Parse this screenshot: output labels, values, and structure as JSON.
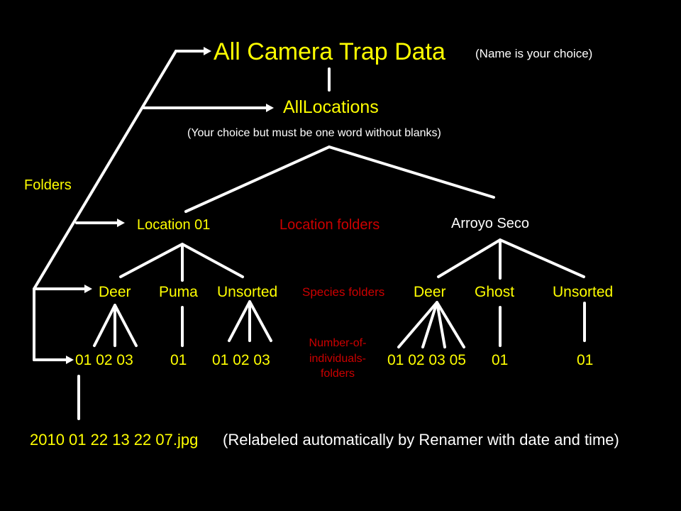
{
  "colors": {
    "background": "#000000",
    "folder_text": "#ffff00",
    "note_text": "#ffffff",
    "category_text": "#cc0000",
    "lines": "#ffffff"
  },
  "root": {
    "title": "All Camera Trap Data",
    "note": "(Name is your choice)"
  },
  "all_locations": {
    "name": "AllLocations",
    "note": "(Your choice but must be one word without blanks)"
  },
  "folders_label": "Folders",
  "location_folders_label": "Location folders",
  "species_folders_label": "Species folders",
  "number_folders_label": "Number-of-individuals-folders",
  "locations": [
    {
      "name": "Location 01",
      "species": [
        {
          "name": "Deer",
          "counts": "01 02 03"
        },
        {
          "name": "Puma",
          "counts": "01"
        },
        {
          "name": "Unsorted",
          "counts": "01 02 03"
        }
      ]
    },
    {
      "name": "Arroyo Seco",
      "species": [
        {
          "name": "Deer",
          "counts": "01 02 03 05"
        },
        {
          "name": "Ghost",
          "counts": "01"
        },
        {
          "name": "Unsorted",
          "counts": "01"
        }
      ]
    }
  ],
  "example_file": {
    "name": "2010 01 22 13 22 07.jpg",
    "note": "(Relabeled automatically by Renamer with date and time)"
  }
}
